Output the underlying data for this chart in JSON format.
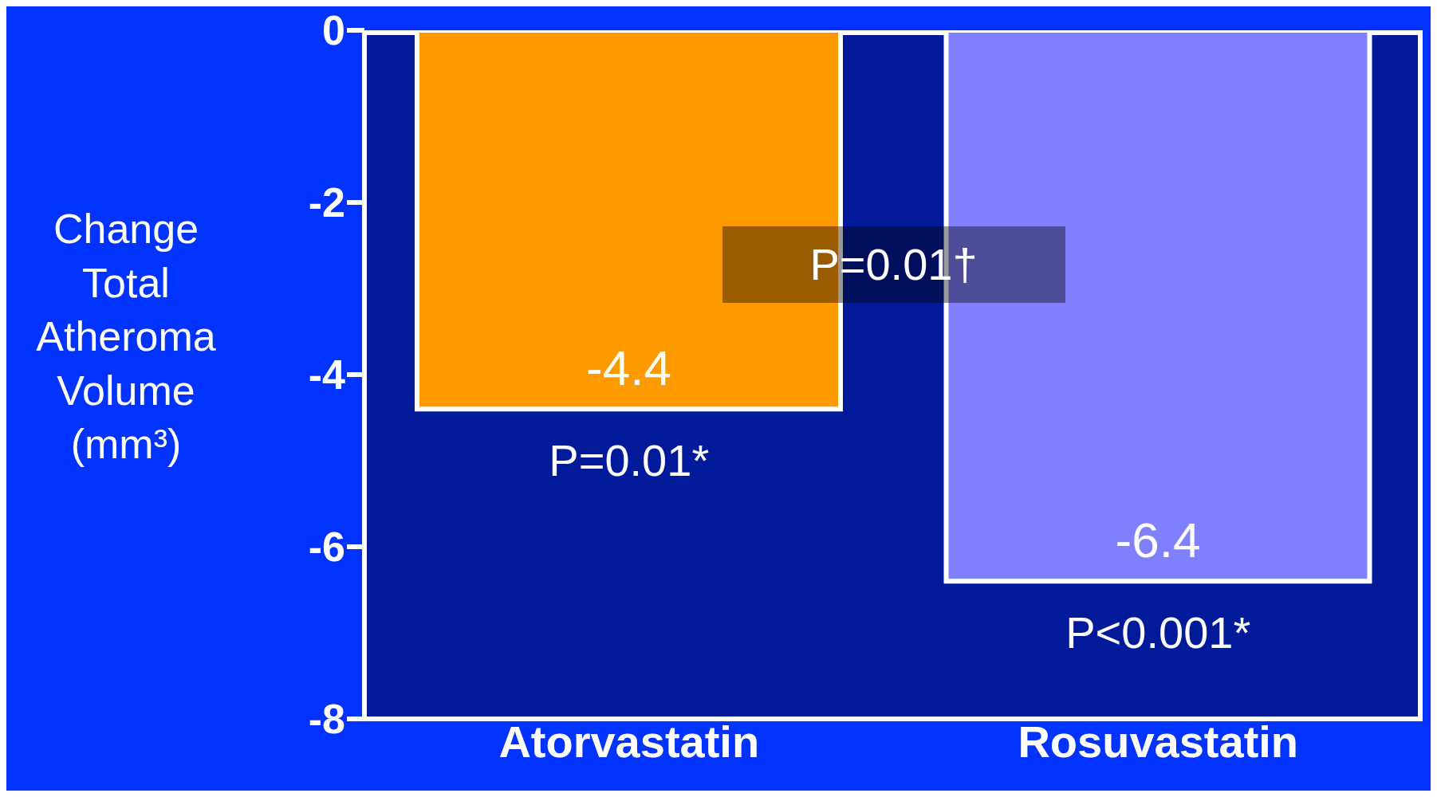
{
  "chart_data": {
    "type": "bar",
    "ylabel": "Change Total Atheroma Volume (mm³)",
    "categories": [
      "Atorvastatin",
      "Rosuvastatin"
    ],
    "values": [
      -4.4,
      -6.4
    ],
    "colors": [
      "#ff9900",
      "#8080ff"
    ],
    "ylim": [
      -8,
      0
    ],
    "yticks": [
      -8,
      -6,
      -4,
      -2,
      0
    ],
    "data_labels": true,
    "annotations": [
      "P=0.01*",
      "P<0.001*",
      "P=0.01†"
    ]
  }
}
